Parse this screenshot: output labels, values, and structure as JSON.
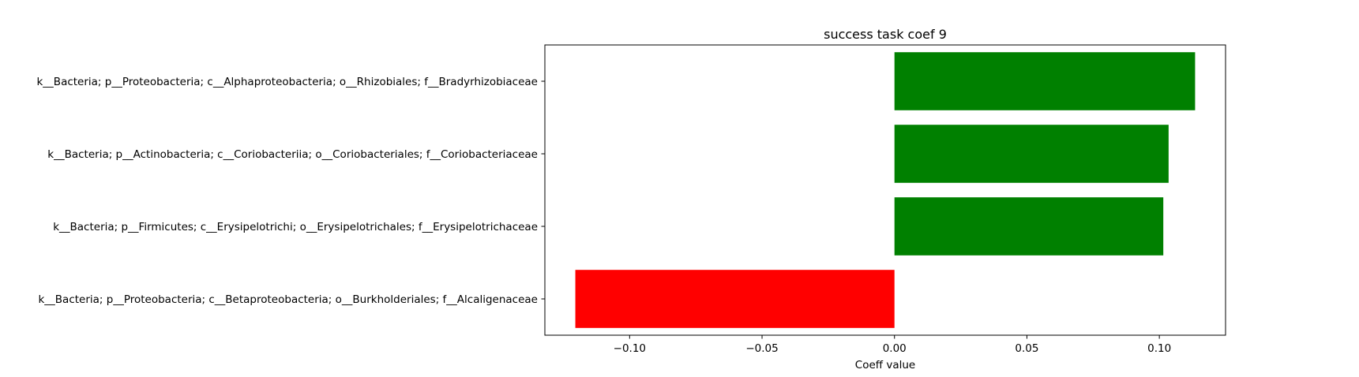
{
  "chart_data": {
    "type": "bar",
    "orientation": "horizontal",
    "title": "success task coef 9",
    "xlabel": "Coeff value",
    "ylabel": "",
    "categories": [
      "k__Bacteria; p__Proteobacteria; c__Alphaproteobacteria; o__Rhizobiales; f__Bradyrhizobiaceae",
      "k__Bacteria; p__Actinobacteria; c__Coriobacteriia; o__Coriobacteriales; f__Coriobacteriaceae",
      "k__Bacteria; p__Firmicutes; c__Erysipelotrichi; o__Erysipelotrichales; f__Erysipelotrichaceae",
      "k__Bacteria; p__Proteobacteria; c__Betaproteobacteria; o__Burkholderiales; f__Alcaligenaceae"
    ],
    "values": [
      0.1135,
      0.1035,
      0.1015,
      -0.1205
    ],
    "bar_colors": [
      "#008000",
      "#008000",
      "#008000",
      "#ff0000"
    ],
    "xlim": [
      -0.132,
      0.125
    ],
    "xticks": [
      -0.1,
      -0.05,
      0.0,
      0.05,
      0.1
    ],
    "xtick_labels": [
      "−0.10",
      "−0.05",
      "0.00",
      "0.05",
      "0.10"
    ],
    "grid": false,
    "legend": "none"
  }
}
